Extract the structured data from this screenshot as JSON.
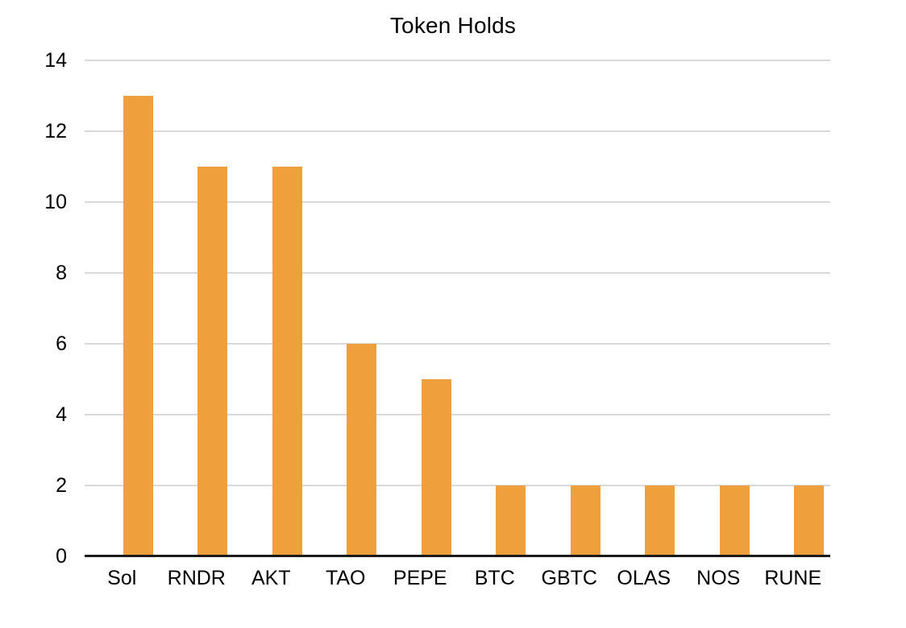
{
  "chart_data": {
    "type": "bar",
    "title": "Token Holds",
    "categories": [
      "Sol",
      "RNDR",
      "AKT",
      "TAO",
      "PEPE",
      "BTC",
      "GBTC",
      "OLAS",
      "NOS",
      "RUNE"
    ],
    "values": [
      13,
      11,
      11,
      6,
      5,
      2,
      2,
      2,
      2,
      2
    ],
    "xlabel": "",
    "ylabel": "",
    "ylim": [
      0,
      14
    ],
    "yticks": [
      0,
      2,
      4,
      6,
      8,
      10,
      12,
      14
    ],
    "grid": "horizontal",
    "legend_position": "none",
    "colors": {
      "bar": "#EF9F3C",
      "gridline": "#D9D9D9",
      "axis_line": "#1A1A1A",
      "text": "#000000",
      "background": "#FFFFFF"
    }
  }
}
